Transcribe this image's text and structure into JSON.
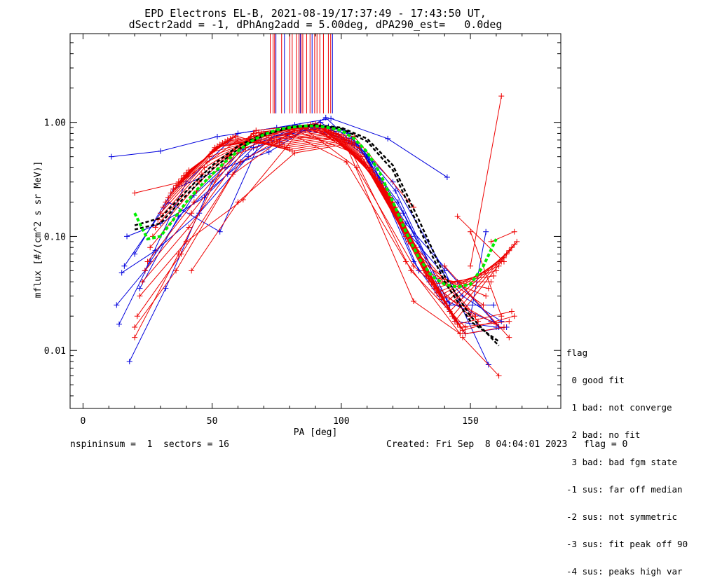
{
  "header": {
    "title_line1": "EPD Electrons EL-B, 2021-08-19/17:37:49 - 17:43:50 UT,",
    "title_line2": "dSectr2add = -1, dPhAng2add = 5.00deg, dPA290_est=   0.0deg"
  },
  "footer": {
    "left": "nspininsum =  1  sectors = 16",
    "right": "Created: Fri Sep  8 04:04:01 2023   flag = 0"
  },
  "legend": {
    "title": "flag",
    "items": [
      " 0 good fit",
      " 1 bad: not converge",
      " 2 bad: no fit",
      " 3 bad: bad fgm state",
      "-1 sus: far off median",
      "-2 sus: not symmetric",
      "-3 sus: fit peak off 90",
      "-4 sus: peaks high var"
    ]
  },
  "colors": {
    "red_series": "#ee0000",
    "blue_series": "#0000dd",
    "black_fit": "#000000",
    "green_fit": "#00ee00"
  },
  "chart_data": {
    "type": "line",
    "xlabel": "PA [deg]",
    "ylabel": "mflux [#/(cm^2 s sr MeV)]",
    "xlim": [
      -5,
      185
    ],
    "ylim": [
      0.0031,
      6.0
    ],
    "yscale": "log",
    "xticks": [
      0,
      50,
      100,
      150
    ],
    "yticks": [
      {
        "value": 0.01,
        "label": "0.01"
      },
      {
        "value": 0.1,
        "label": "0.10"
      },
      {
        "value": 1.0,
        "label": "1.00"
      }
    ],
    "vertical_markers": {
      "y_range": [
        1.2,
        6.0
      ],
      "red_x": [
        72.5,
        73.6,
        74.2,
        76.9,
        80.1,
        81.0,
        82.6,
        83.6,
        84.4,
        85.1,
        86.6,
        87.9,
        89.7,
        90.6,
        91.7,
        93.1,
        95.0,
        95.9
      ],
      "blue_x": [
        74.7,
        78.0,
        84.1,
        88.7,
        96.6
      ]
    },
    "series": [
      {
        "color": "blue",
        "x": [
          11,
          30,
          52,
          75,
          96,
          118,
          141
        ],
        "y": [
          0.5,
          0.56,
          0.75,
          0.9,
          1.08,
          0.72,
          0.33
        ]
      },
      {
        "color": "blue",
        "x": [
          13,
          24,
          40,
          60,
          82,
          101,
          120,
          140,
          157
        ],
        "y": [
          0.025,
          0.05,
          0.3,
          0.8,
          0.95,
          0.85,
          0.3,
          0.05,
          0.0075
        ]
      },
      {
        "color": "blue",
        "x": [
          14,
          26,
          43,
          62,
          84,
          103,
          121,
          141,
          158
        ],
        "y": [
          0.017,
          0.06,
          0.23,
          0.58,
          0.93,
          0.8,
          0.25,
          0.027,
          0.018
        ]
      },
      {
        "color": "blue",
        "x": [
          15,
          28,
          45,
          64,
          86,
          104,
          122,
          142,
          159
        ],
        "y": [
          0.048,
          0.075,
          0.16,
          0.5,
          0.85,
          0.72,
          0.2,
          0.025,
          0.025
        ]
      },
      {
        "color": "blue",
        "x": [
          17,
          30,
          47,
          66,
          88,
          106,
          124,
          144,
          160
        ],
        "y": [
          0.1,
          0.13,
          0.22,
          0.6,
          0.9,
          0.65,
          0.16,
          0.018,
          0.016
        ]
      },
      {
        "color": "blue",
        "x": [
          18,
          32,
          50,
          68,
          90,
          107,
          125,
          145,
          161
        ],
        "y": [
          0.008,
          0.035,
          0.3,
          0.7,
          0.93,
          0.6,
          0.13,
          0.04,
          0.016
        ]
      },
      {
        "color": "blue",
        "x": [
          16,
          33,
          53,
          70,
          92,
          109,
          127,
          147,
          162
        ],
        "y": [
          0.055,
          0.2,
          0.11,
          0.8,
          1.0,
          0.55,
          0.1,
          0.03,
          0.018
        ]
      },
      {
        "color": "blue",
        "x": [
          20,
          35,
          55,
          72,
          94,
          110,
          128,
          148,
          164
        ],
        "y": [
          0.07,
          0.26,
          0.4,
          0.55,
          1.1,
          0.5,
          0.06,
          0.014,
          0.016
        ]
      },
      {
        "color": "blue",
        "x": [
          22,
          37,
          56,
          74,
          95,
          112,
          130,
          150,
          156
        ],
        "y": [
          0.035,
          0.15,
          0.35,
          0.75,
          0.92,
          0.45,
          0.05,
          0.02,
          0.11
        ]
      },
      {
        "color": "red",
        "x": [
          20,
          38,
          60,
          84,
          105,
          128
        ],
        "y": [
          0.24,
          0.3,
          0.7,
          0.9,
          0.75,
          0.18
        ]
      },
      {
        "color": "red",
        "x": [
          20,
          36,
          58,
          80,
          102,
          125,
          146
        ],
        "y": [
          0.016,
          0.05,
          0.35,
          0.8,
          0.45,
          0.06,
          0.014
        ]
      },
      {
        "color": "red",
        "x": [
          21,
          38,
          61,
          82,
          104,
          127,
          148
        ],
        "y": [
          0.02,
          0.07,
          0.45,
          0.85,
          0.55,
          0.05,
          0.016
        ]
      },
      {
        "color": "red",
        "x": [
          22,
          40,
          62,
          85,
          106,
          128,
          150
        ],
        "y": [
          0.03,
          0.09,
          0.21,
          0.9,
          0.4,
          0.055,
          0.02
        ]
      },
      {
        "color": "red",
        "x": [
          23,
          41,
          63,
          86,
          107,
          129,
          152
        ],
        "y": [
          0.04,
          0.12,
          0.6,
          0.9,
          0.6,
          0.08,
          0.02
        ]
      },
      {
        "color": "red",
        "x": [
          24,
          42,
          64,
          87,
          108,
          130,
          153
        ],
        "y": [
          0.05,
          0.16,
          0.7,
          0.92,
          0.5,
          0.07,
          0.018
        ]
      },
      {
        "color": "red",
        "x": [
          25,
          43,
          65,
          88,
          109,
          131,
          155
        ],
        "y": [
          0.06,
          0.2,
          0.75,
          0.95,
          0.45,
          0.06,
          0.025
        ]
      },
      {
        "color": "red",
        "x": [
          26,
          44,
          66,
          89,
          110,
          132,
          156
        ],
        "y": [
          0.08,
          0.25,
          0.8,
          0.95,
          0.42,
          0.05,
          0.03
        ]
      },
      {
        "color": "red",
        "x": [
          27,
          45,
          67,
          90,
          111,
          133,
          157
        ],
        "y": [
          0.1,
          0.3,
          0.85,
          0.97,
          0.4,
          0.045,
          0.035
        ]
      },
      {
        "color": "red",
        "x": [
          28,
          46,
          68,
          91,
          112,
          134,
          158
        ],
        "y": [
          0.12,
          0.35,
          0.82,
          0.95,
          0.38,
          0.04,
          0.04
        ]
      },
      {
        "color": "red",
        "x": [
          29,
          47,
          69,
          92,
          113,
          135,
          159
        ],
        "y": [
          0.14,
          0.4,
          0.8,
          0.93,
          0.35,
          0.038,
          0.045
        ]
      },
      {
        "color": "red",
        "x": [
          30,
          48,
          70,
          93,
          114,
          136,
          160
        ],
        "y": [
          0.16,
          0.45,
          0.78,
          0.9,
          0.32,
          0.035,
          0.05
        ]
      },
      {
        "color": "red",
        "x": [
          31,
          49,
          71,
          94,
          115,
          137,
          161
        ],
        "y": [
          0.18,
          0.5,
          0.76,
          0.88,
          0.3,
          0.032,
          0.055
        ]
      },
      {
        "color": "red",
        "x": [
          32,
          50,
          72,
          95,
          116,
          138,
          162
        ],
        "y": [
          0.2,
          0.55,
          0.74,
          0.86,
          0.28,
          0.03,
          0.06
        ]
      },
      {
        "color": "red",
        "x": [
          33,
          51,
          73,
          96,
          117,
          139,
          163
        ],
        "y": [
          0.22,
          0.6,
          0.72,
          0.84,
          0.26,
          0.028,
          0.065
        ]
      },
      {
        "color": "red",
        "x": [
          34,
          52,
          74,
          97,
          118,
          140,
          164
        ],
        "y": [
          0.24,
          0.62,
          0.7,
          0.82,
          0.24,
          0.026,
          0.07
        ]
      },
      {
        "color": "red",
        "x": [
          35,
          53,
          75,
          98,
          119,
          141,
          165
        ],
        "y": [
          0.26,
          0.64,
          0.68,
          0.8,
          0.22,
          0.024,
          0.075
        ]
      },
      {
        "color": "red",
        "x": [
          36,
          54,
          76,
          99,
          120,
          142,
          166
        ],
        "y": [
          0.28,
          0.66,
          0.66,
          0.78,
          0.2,
          0.022,
          0.08
        ]
      },
      {
        "color": "red",
        "x": [
          37,
          55,
          77,
          100,
          121,
          143,
          167
        ],
        "y": [
          0.3,
          0.68,
          0.64,
          0.76,
          0.18,
          0.02,
          0.085
        ]
      },
      {
        "color": "red",
        "x": [
          38,
          56,
          78,
          101,
          122,
          144,
          168
        ],
        "y": [
          0.32,
          0.7,
          0.62,
          0.74,
          0.16,
          0.018,
          0.09
        ]
      },
      {
        "color": "red",
        "x": [
          39,
          57,
          79,
          102,
          123,
          145,
          166
        ],
        "y": [
          0.34,
          0.72,
          0.6,
          0.72,
          0.14,
          0.017,
          0.022
        ]
      },
      {
        "color": "red",
        "x": [
          40,
          58,
          80,
          103,
          124,
          146,
          165
        ],
        "y": [
          0.36,
          0.74,
          0.58,
          0.7,
          0.12,
          0.016,
          0.018
        ]
      },
      {
        "color": "red",
        "x": [
          41,
          59,
          81,
          104,
          125,
          147,
          167
        ],
        "y": [
          0.38,
          0.76,
          0.56,
          0.68,
          0.1,
          0.015,
          0.02
        ]
      },
      {
        "color": "red",
        "x": [
          42,
          60,
          82,
          105,
          126,
          148,
          163
        ],
        "y": [
          0.05,
          0.2,
          0.54,
          0.66,
          0.09,
          0.014,
          0.016
        ]
      },
      {
        "color": "red",
        "x": [
          20,
          37,
          56,
          80,
          101,
          128,
          146
        ],
        "y": [
          0.013,
          0.07,
          0.5,
          0.75,
          0.7,
          0.027,
          0.014
        ]
      },
      {
        "color": "red",
        "x": [
          140,
          160
        ],
        "y": [
          0.03,
          0.017
        ]
      },
      {
        "color": "red",
        "x": [
          140,
          165
        ],
        "y": [
          0.055,
          0.013
        ]
      },
      {
        "color": "red",
        "x": [
          145,
          163
        ],
        "y": [
          0.15,
          0.06
        ]
      },
      {
        "color": "red",
        "x": [
          147,
          161
        ],
        "y": [
          0.013,
          0.006
        ]
      },
      {
        "color": "red",
        "x": [
          150,
          162
        ],
        "y": [
          0.11,
          0.02
        ]
      },
      {
        "color": "red",
        "x": [
          150,
          162
        ],
        "y": [
          0.055,
          1.7
        ]
      },
      {
        "color": "red",
        "x": [
          158,
          167
        ],
        "y": [
          0.09,
          0.11
        ]
      }
    ],
    "fits": [
      {
        "color": "black",
        "x": [
          20,
          30,
          40,
          50,
          60,
          70,
          80,
          90,
          100,
          110,
          120,
          130,
          140,
          150,
          161
        ],
        "y": [
          0.125,
          0.145,
          0.25,
          0.42,
          0.62,
          0.8,
          0.92,
          0.95,
          0.9,
          0.72,
          0.42,
          0.14,
          0.045,
          0.02,
          0.011
        ]
      },
      {
        "color": "black",
        "x": [
          20,
          30,
          40,
          50,
          60,
          70,
          80,
          90,
          100,
          110,
          120,
          130,
          140,
          150,
          161
        ],
        "y": [
          0.115,
          0.13,
          0.23,
          0.39,
          0.58,
          0.77,
          0.9,
          0.94,
          0.88,
          0.68,
          0.38,
          0.12,
          0.04,
          0.018,
          0.012
        ]
      },
      {
        "color": "green",
        "x": [
          20,
          25,
          30,
          35,
          40,
          45,
          50,
          55,
          60,
          65,
          70,
          75,
          80,
          85,
          90,
          95,
          100,
          105,
          110,
          115,
          120,
          125,
          130,
          135,
          140,
          145,
          150,
          155,
          160
        ],
        "y": [
          0.16,
          0.095,
          0.1,
          0.14,
          0.2,
          0.27,
          0.35,
          0.45,
          0.56,
          0.68,
          0.78,
          0.86,
          0.9,
          0.93,
          0.93,
          0.9,
          0.85,
          0.72,
          0.55,
          0.36,
          0.2,
          0.11,
          0.065,
          0.045,
          0.038,
          0.036,
          0.038,
          0.055,
          0.095
        ]
      }
    ]
  }
}
